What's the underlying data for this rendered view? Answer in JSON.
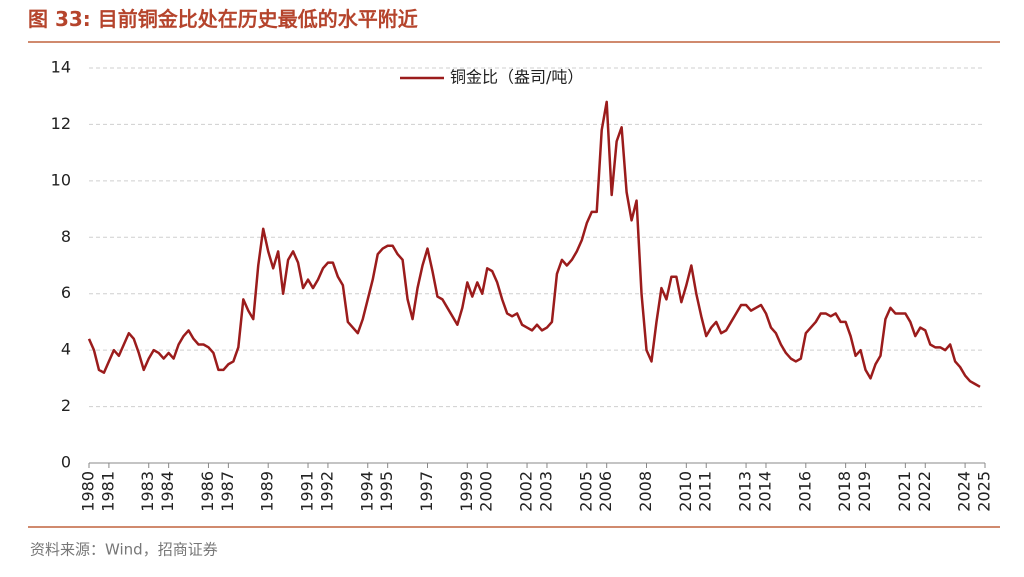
{
  "chart_data": {
    "type": "line",
    "title": "图 33:  目前铜金比处在历史最低的水平附近",
    "source": "资料来源：Wind，招商证券",
    "x": [
      1980,
      1980.25,
      1980.5,
      1980.75,
      1981,
      1981.25,
      1981.5,
      1981.75,
      1982,
      1982.25,
      1982.5,
      1982.75,
      1983,
      1983.25,
      1983.5,
      1983.75,
      1984,
      1984.25,
      1984.5,
      1984.75,
      1985,
      1985.25,
      1985.5,
      1985.75,
      1986,
      1986.25,
      1986.5,
      1986.75,
      1987,
      1987.25,
      1987.5,
      1987.75,
      1988,
      1988.25,
      1988.5,
      1988.75,
      1989,
      1989.25,
      1989.5,
      1989.75,
      1990,
      1990.25,
      1990.5,
      1990.75,
      1991,
      1991.25,
      1991.5,
      1991.75,
      1992,
      1992.25,
      1992.5,
      1992.75,
      1993,
      1993.25,
      1993.5,
      1993.75,
      1994,
      1994.25,
      1994.5,
      1994.75,
      1995,
      1995.25,
      1995.5,
      1995.75,
      1996,
      1996.25,
      1996.5,
      1996.75,
      1997,
      1997.25,
      1997.5,
      1997.75,
      1998,
      1998.25,
      1998.5,
      1998.75,
      1999,
      1999.25,
      1999.5,
      1999.75,
      2000,
      2000.25,
      2000.5,
      2000.75,
      2001,
      2001.25,
      2001.5,
      2001.75,
      2002,
      2002.25,
      2002.5,
      2002.75,
      2003,
      2003.25,
      2003.5,
      2003.75,
      2004,
      2004.25,
      2004.5,
      2004.75,
      2005,
      2005.25,
      2005.5,
      2005.75,
      2006,
      2006.25,
      2006.5,
      2006.75,
      2007,
      2007.25,
      2007.5,
      2007.75,
      2008,
      2008.25,
      2008.5,
      2008.75,
      2009,
      2009.25,
      2009.5,
      2009.75,
      2010,
      2010.25,
      2010.5,
      2010.75,
      2011,
      2011.25,
      2011.5,
      2011.75,
      2012,
      2012.25,
      2012.5,
      2012.75,
      2013,
      2013.25,
      2013.5,
      2013.75,
      2014,
      2014.25,
      2014.5,
      2014.75,
      2015,
      2015.25,
      2015.5,
      2015.75,
      2016,
      2016.25,
      2016.5,
      2016.75,
      2017,
      2017.25,
      2017.5,
      2017.75,
      2018,
      2018.25,
      2018.5,
      2018.75,
      2019,
      2019.25,
      2019.5,
      2019.75,
      2020,
      2020.25,
      2020.5,
      2020.75,
      2021,
      2021.25,
      2021.5,
      2021.75,
      2022,
      2022.25,
      2022.5,
      2022.75,
      2023,
      2023.25,
      2023.5,
      2023.75,
      2024,
      2024.25,
      2024.5,
      2024.75
    ],
    "series": [
      {
        "name": "铜金比（盎司/吨）",
        "color": "#9b1c1c",
        "values": [
          4.4,
          4.0,
          3.3,
          3.2,
          3.6,
          4.0,
          3.8,
          4.2,
          4.6,
          4.4,
          3.9,
          3.3,
          3.7,
          4.0,
          3.9,
          3.7,
          3.9,
          3.7,
          4.2,
          4.5,
          4.7,
          4.4,
          4.2,
          4.2,
          4.1,
          3.9,
          3.3,
          3.3,
          3.5,
          3.6,
          4.1,
          5.8,
          5.4,
          5.1,
          7.0,
          8.3,
          7.5,
          6.9,
          7.5,
          6.0,
          7.2,
          7.5,
          7.1,
          6.2,
          6.5,
          6.2,
          6.5,
          6.9,
          7.1,
          7.1,
          6.6,
          6.3,
          5.0,
          4.8,
          4.6,
          5.1,
          5.8,
          6.5,
          7.4,
          7.6,
          7.7,
          7.7,
          7.4,
          7.2,
          5.8,
          5.1,
          6.2,
          7.0,
          7.6,
          6.8,
          5.9,
          5.8,
          5.5,
          5.2,
          4.9,
          5.5,
          6.4,
          5.9,
          6.4,
          6.0,
          6.9,
          6.8,
          6.4,
          5.8,
          5.3,
          5.2,
          5.3,
          4.9,
          4.8,
          4.7,
          4.9,
          4.7,
          4.8,
          5.0,
          6.7,
          7.2,
          7.0,
          7.2,
          7.5,
          7.9,
          8.5,
          8.9,
          8.9,
          11.8,
          12.8,
          9.5,
          11.4,
          11.9,
          9.6,
          8.6,
          9.3,
          6.0,
          4.0,
          3.6,
          5.0,
          6.2,
          5.8,
          6.6,
          6.6,
          5.7,
          6.3,
          7.0,
          6.0,
          5.2,
          4.5,
          4.8,
          5.0,
          4.6,
          4.7,
          5.0,
          5.3,
          5.6,
          5.6,
          5.4,
          5.5,
          5.6,
          5.3,
          4.8,
          4.6,
          4.2,
          3.9,
          3.7,
          3.6,
          3.7,
          4.6,
          4.8,
          5.0,
          5.3,
          5.3,
          5.2,
          5.3,
          5.0,
          5.0,
          4.5,
          3.8,
          4.0,
          3.3,
          3.0,
          3.5,
          3.8,
          5.1,
          5.5,
          5.3,
          5.3,
          5.3,
          5.0,
          4.5,
          4.8,
          4.7,
          4.2,
          4.1,
          4.1,
          4.0,
          4.2,
          3.6,
          3.4,
          3.1,
          2.9,
          2.8,
          2.7
        ]
      }
    ],
    "xlim": [
      1980,
      2025
    ],
    "xticks": [
      1980,
      1981,
      1983,
      1984,
      1986,
      1987,
      1989,
      1991,
      1992,
      1994,
      1995,
      1997,
      1999,
      2000,
      2002,
      2003,
      2005,
      2006,
      2008,
      2010,
      2011,
      2013,
      2014,
      2016,
      2018,
      2019,
      2021,
      2022,
      2024,
      2025
    ],
    "ylim": [
      0,
      14
    ],
    "yticks": [
      0,
      2,
      4,
      6,
      8,
      10,
      12,
      14
    ],
    "grid": true,
    "legend": "top"
  }
}
